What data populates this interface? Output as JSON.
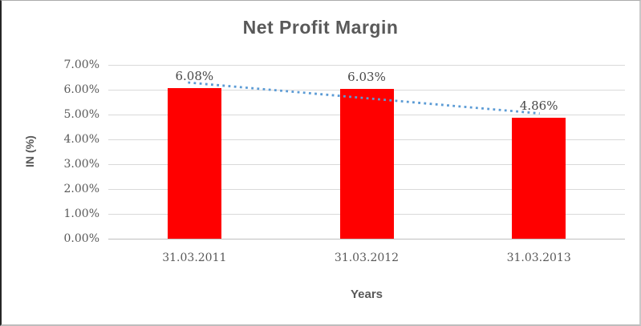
{
  "chart_data": {
    "type": "bar",
    "title": "Net Profit Margin",
    "xlabel": "Years",
    "ylabel": "IN (%)",
    "categories": [
      "31.03.2011",
      "31.03.2012",
      "31.03.2013"
    ],
    "values": [
      6.08,
      6.03,
      4.86
    ],
    "data_labels": [
      "6.08%",
      "6.03%",
      "4.86%"
    ],
    "ylim": [
      0,
      7
    ],
    "ytick_step": 1,
    "ytick_labels": [
      "0.00%",
      "1.00%",
      "2.00%",
      "3.00%",
      "4.00%",
      "5.00%",
      "6.00%",
      "7.00%"
    ],
    "grid": true,
    "legend": "none",
    "bar_color": "#ff0000",
    "trendline": {
      "type": "linear",
      "style": "dotted",
      "color": "#5b9bd5"
    },
    "text_color": "#595959"
  }
}
